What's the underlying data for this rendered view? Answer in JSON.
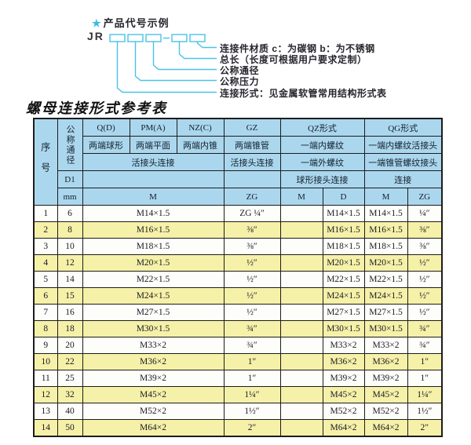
{
  "diagram": {
    "star": "★",
    "title": "产品代号示例",
    "prefix": "JR",
    "labels": [
      "连接件材质  c：为碳钢  b：为不锈钢",
      "总长（长度可根据用户要求定制）",
      "公称通径",
      "公称压力",
      "连接形式：见金属软管常用结构形式表"
    ]
  },
  "table": {
    "title": "螺母连接形式参考表",
    "header": {
      "row_no": "序号",
      "nominal_diameter": "公称通径",
      "d1_label": "D1",
      "mm_label": "mm",
      "groups": [
        "Q(D)",
        "PM(A)",
        "NZ(C)",
        "GZ",
        "QZ形式",
        "QG形式"
      ],
      "sub_row1": [
        "两端球形",
        "两端平面",
        "两端内锥",
        "两端锥管",
        "一端内螺纹",
        "一端内螺纹活接头"
      ],
      "sub_row2": [
        "活接头连接",
        "活接头连接",
        "一端外螺纹",
        "一端锥管螺纹接头"
      ],
      "sub_row3": [
        "球形接头连接",
        "连接"
      ],
      "units": [
        "M",
        "ZG",
        "M",
        "D",
        "M",
        "ZG"
      ]
    },
    "rows": [
      {
        "no": "1",
        "dn": "6",
        "m": "M14×1.5",
        "zg": "ZG ¼″",
        "qz_m": "",
        "qz_d": "M14×1.5",
        "qg_m": "M14×1.5",
        "qg_zg": "¼″"
      },
      {
        "no": "2",
        "dn": "8",
        "m": "M16×1.5",
        "zg": "⅜″",
        "qz_m": "",
        "qz_d": "M16×1.5",
        "qg_m": "M16×1.5",
        "qg_zg": "⅜″"
      },
      {
        "no": "3",
        "dn": "10",
        "m": "M18×1.5",
        "zg": "⅜″",
        "qz_m": "",
        "qz_d": "M18×1.5",
        "qg_m": "M18×1.5",
        "qg_zg": "⅜″"
      },
      {
        "no": "4",
        "dn": "12",
        "m": "M20×1.5",
        "zg": "½″",
        "qz_m": "",
        "qz_d": "M20×1.5",
        "qg_m": "M20×1.5",
        "qg_zg": "½″"
      },
      {
        "no": "5",
        "dn": "14",
        "m": "M22×1.5",
        "zg": "½″",
        "qz_m": "",
        "qz_d": "M22×1.5",
        "qg_m": "M22×1.5",
        "qg_zg": "½″"
      },
      {
        "no": "6",
        "dn": "15",
        "m": "M24×1.5",
        "zg": "½″",
        "qz_m": "",
        "qz_d": "M24×1.5",
        "qg_m": "M24×1.5",
        "qg_zg": "½″"
      },
      {
        "no": "7",
        "dn": "16",
        "m": "M27×1.5",
        "zg": "½″",
        "qz_m": "",
        "qz_d": "M27×1.5",
        "qg_m": "M27×1.5",
        "qg_zg": "½″"
      },
      {
        "no": "8",
        "dn": "18",
        "m": "M30×1.5",
        "zg": "¾″",
        "qz_m": "",
        "qz_d": "M30×1.5",
        "qg_m": "M30×1.5",
        "qg_zg": "¾″"
      },
      {
        "no": "9",
        "dn": "20",
        "m": "M33×2",
        "zg": "¾″",
        "qz_m": "",
        "qz_d": "M33×2",
        "qg_m": "M33×2",
        "qg_zg": "¾″"
      },
      {
        "no": "10",
        "dn": "22",
        "m": "M36×2",
        "zg": "1″",
        "qz_m": "",
        "qz_d": "M36×2",
        "qg_m": "M36×2",
        "qg_zg": "1″"
      },
      {
        "no": "11",
        "dn": "25",
        "m": "M39×2",
        "zg": "1″",
        "qz_m": "",
        "qz_d": "M39×2",
        "qg_m": "M39×2",
        "qg_zg": "1″"
      },
      {
        "no": "12",
        "dn": "32",
        "m": "M45×2",
        "zg": "1¼″",
        "qz_m": "",
        "qz_d": "M45×2",
        "qg_m": "M45×2",
        "qg_zg": "1¼″"
      },
      {
        "no": "13",
        "dn": "40",
        "m": "M52×2",
        "zg": "1½″",
        "qz_m": "",
        "qz_d": "M52×2",
        "qg_m": "M52×2",
        "qg_zg": "1½″"
      },
      {
        "no": "14",
        "dn": "50",
        "m": "M64×2",
        "zg": "2″",
        "qz_m": "",
        "qz_d": "M64×2",
        "qg_m": "M64×2",
        "qg_zg": "2″"
      }
    ]
  },
  "colors": {
    "header_bg": "#abd7ee",
    "row_alt_yellow": "#f6f1a8",
    "border": "#1c1c1c",
    "diagram_cyan": "#4ac2e6"
  }
}
